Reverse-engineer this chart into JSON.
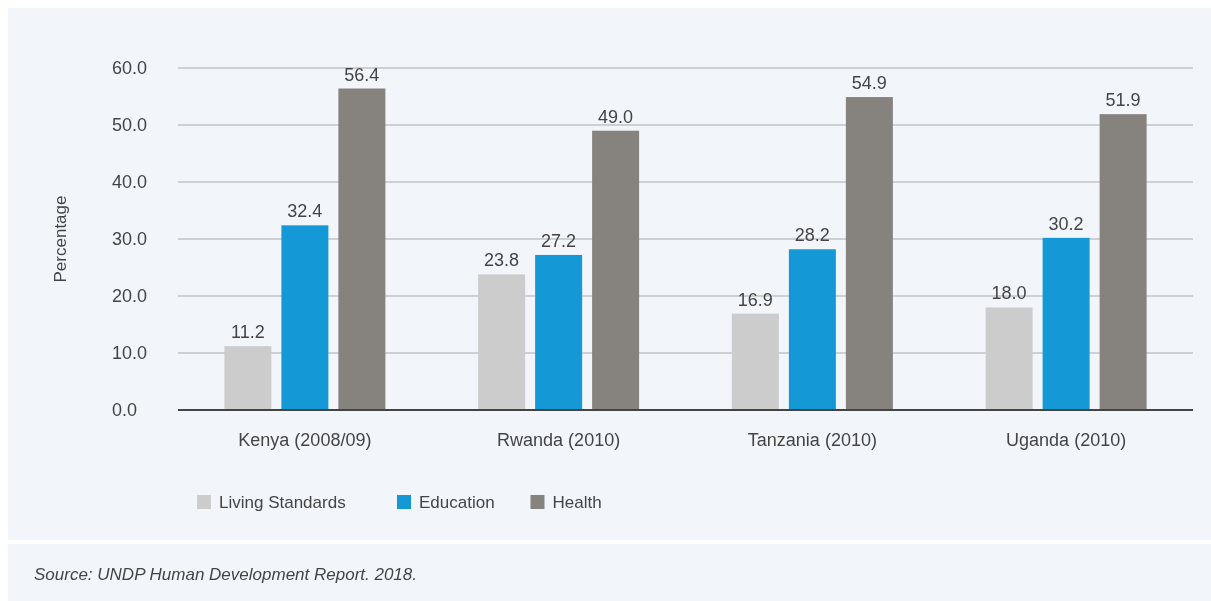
{
  "chart_data": {
    "type": "bar",
    "ylabel": "Percentage",
    "categories": [
      "Kenya (2008/09)",
      "Rwanda (2010)",
      "Tanzania (2010)",
      "Uganda (2010)"
    ],
    "series": [
      {
        "name": "Living Standards",
        "color": "#cccccc",
        "values": [
          11.2,
          23.8,
          16.9,
          18.0
        ],
        "value_labels": [
          "11.2",
          "23.8",
          "16.9",
          "18.0"
        ]
      },
      {
        "name": "Education",
        "color": "#1599d6",
        "values": [
          32.4,
          27.2,
          28.2,
          30.2
        ],
        "value_labels": [
          "32.4",
          "27.2",
          "28.2",
          "30.2"
        ]
      },
      {
        "name": "Health",
        "color": "#86827e",
        "values": [
          56.4,
          49.0,
          54.9,
          51.9
        ],
        "value_labels": [
          "56.4",
          "49.0",
          "54.9",
          "51.9"
        ]
      }
    ],
    "ylim": [
      0,
      60
    ],
    "yticks": [
      {
        "value": 0,
        "label": "0.0"
      },
      {
        "value": 10,
        "label": "10.0"
      },
      {
        "value": 20,
        "label": "20.0"
      },
      {
        "value": 30,
        "label": "30.0"
      },
      {
        "value": 40,
        "label": "40.0"
      },
      {
        "value": 50,
        "label": "50.0"
      },
      {
        "value": 60,
        "label": "60.0"
      }
    ],
    "grid": "y",
    "legend": "bottom left",
    "annotations": [
      "Source: UNDP Human Development Report. 2018."
    ]
  }
}
